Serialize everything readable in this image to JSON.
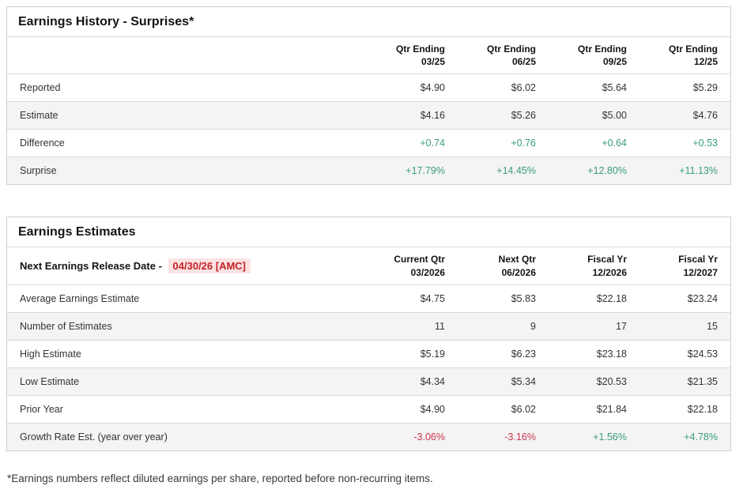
{
  "colors": {
    "green": "#3a9d7b",
    "red": "#cb344d",
    "date-red": "#c42127",
    "date-bg": "#fce3e3",
    "border": "#cfcfcf",
    "stripe": "#f4f4f4"
  },
  "earnings_history": {
    "title": "Earnings History - Surprises*",
    "columns": [
      "Qtr Ending\n03/25",
      "Qtr Ending\n06/25",
      "Qtr Ending\n09/25",
      "Qtr Ending\n12/25"
    ],
    "rows": [
      {
        "label": "Reported",
        "values": [
          "$4.90",
          "$6.02",
          "$5.64",
          "$5.29"
        ]
      },
      {
        "label": "Estimate",
        "values": [
          "$4.16",
          "$5.26",
          "$5.00",
          "$4.76"
        ]
      },
      {
        "label": "Difference",
        "values": [
          "+0.74",
          "+0.76",
          "+0.64",
          "+0.53"
        ]
      },
      {
        "label": "Surprise",
        "values": [
          "+17.79%",
          "+14.45%",
          "+12.80%",
          "+11.13%"
        ]
      }
    ]
  },
  "earnings_estimates": {
    "title": "Earnings Estimates",
    "release_label": "Next Earnings Release Date - ",
    "release_date": "04/30/26 [AMC]",
    "columns": [
      "Current Qtr\n03/2026",
      "Next Qtr\n06/2026",
      "Fiscal Yr\n12/2026",
      "Fiscal Yr\n12/2027"
    ],
    "rows": [
      {
        "label": "Average Earnings Estimate",
        "values": [
          "$4.75",
          "$5.83",
          "$22.18",
          "$23.24"
        ]
      },
      {
        "label": "Number of Estimates",
        "values": [
          "11",
          "9",
          "17",
          "15"
        ]
      },
      {
        "label": "High Estimate",
        "values": [
          "$5.19",
          "$6.23",
          "$23.18",
          "$24.53"
        ]
      },
      {
        "label": "Low Estimate",
        "values": [
          "$4.34",
          "$5.34",
          "$20.53",
          "$21.35"
        ]
      },
      {
        "label": "Prior Year",
        "values": [
          "$4.90",
          "$6.02",
          "$21.84",
          "$22.18"
        ]
      },
      {
        "label": "Growth Rate Est. (year over year)",
        "values": [
          "-3.06%",
          "-3.16%",
          "+1.56%",
          "+4.78%"
        ]
      }
    ]
  },
  "footnote": "*Earnings numbers reflect diluted earnings per share, reported before non-recurring items."
}
